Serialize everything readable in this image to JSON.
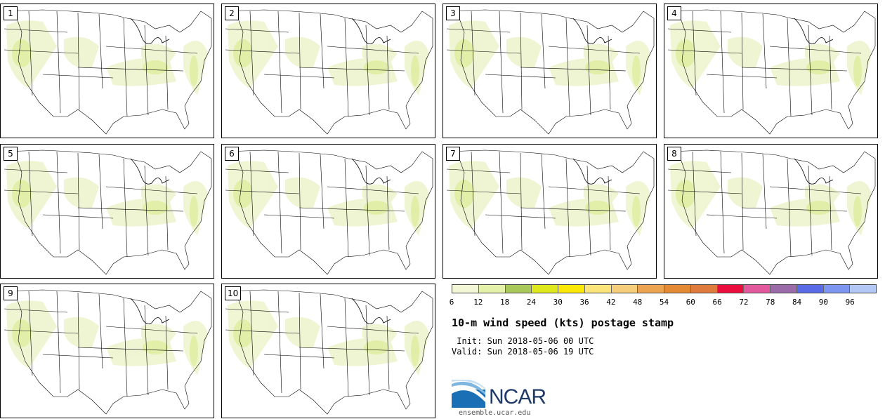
{
  "panels": [
    {
      "num": "1"
    },
    {
      "num": "2"
    },
    {
      "num": "3"
    },
    {
      "num": "4"
    },
    {
      "num": "5"
    },
    {
      "num": "6"
    },
    {
      "num": "7"
    },
    {
      "num": "8"
    },
    {
      "num": "9"
    },
    {
      "num": "10"
    }
  ],
  "colorbar": {
    "ticks": [
      "6",
      "12",
      "18",
      "24",
      "30",
      "36",
      "42",
      "48",
      "54",
      "60",
      "66",
      "72",
      "78",
      "84",
      "90",
      "96"
    ],
    "colors": [
      "#f3f7d6",
      "#e3f1a9",
      "#a9c85a",
      "#dfe81c",
      "#fbe708",
      "#fbe47a",
      "#f5cd7b",
      "#eda450",
      "#e48a35",
      "#df7c3d",
      "#ea0d3e",
      "#e25a9d",
      "#9b6aa8",
      "#5a6be8",
      "#7d96f0",
      "#b3c8f5"
    ]
  },
  "title": "10-m wind speed (kts) postage stamp",
  "init_line": " Init: Sun 2018-05-06 00 UTC",
  "valid_line": "Valid: Sun 2018-05-06 19 UTC",
  "logo": {
    "text": "NCAR",
    "url": "ensemble.ucar.edu"
  }
}
